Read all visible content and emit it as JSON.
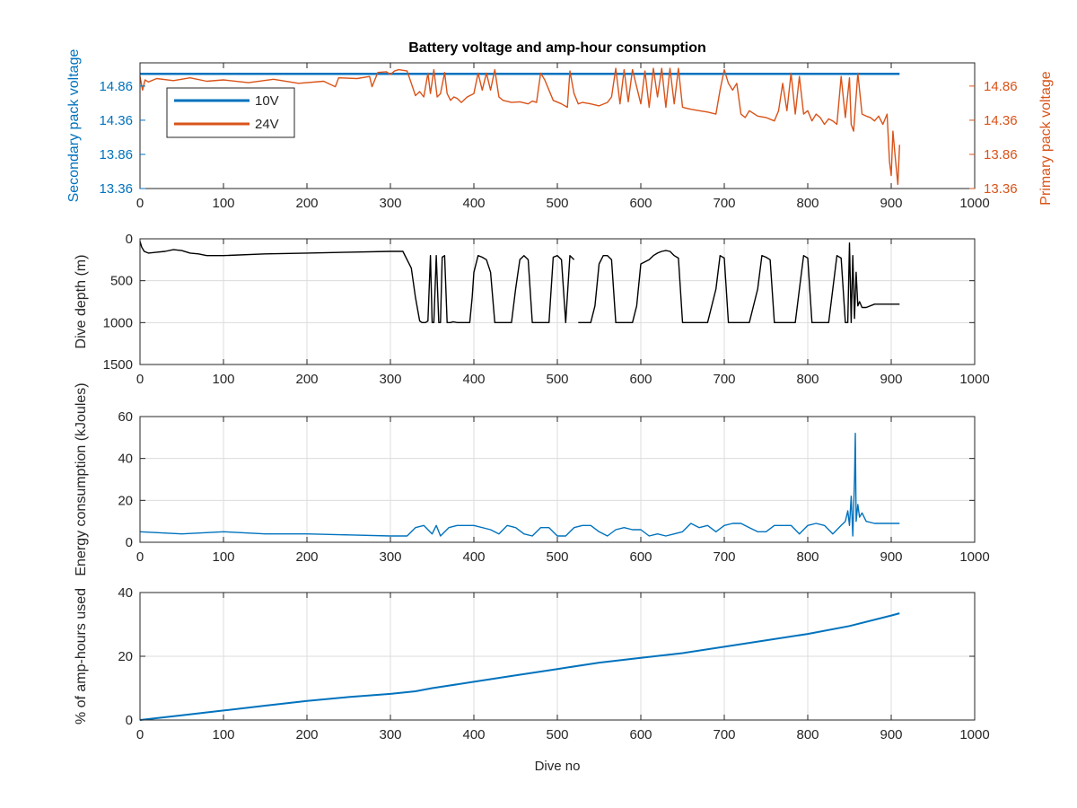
{
  "figure_title": "Battery voltage and amp-hour consumption",
  "colors": {
    "blue": "#0072BD",
    "orange": "#D95319",
    "black": "#000000",
    "grid": "#dcdcdc",
    "axis": "#262626"
  },
  "chart_data": [
    {
      "id": "voltage",
      "type": "line",
      "title": "Battery voltage and amp-hour consumption",
      "xlabel": "",
      "ylabel": "Secondary pack voltage",
      "ylabel_right": "Primary pack voltage",
      "xlim": [
        0,
        1000
      ],
      "ylim": [
        13.36,
        15.2
      ],
      "xticks": [
        0,
        100,
        200,
        300,
        400,
        500,
        600,
        700,
        800,
        900,
        1000
      ],
      "yticks": [
        13.36,
        13.86,
        14.36,
        14.86
      ],
      "ytick_labels": [
        "13.36",
        "13.86",
        "14.36",
        "14.86"
      ],
      "grid": false,
      "legend_position": "top-left",
      "series": [
        {
          "name": "10V",
          "color": "#0072BD",
          "axis": "left",
          "x": [
            0,
            910
          ],
          "y": [
            15.04,
            15.04
          ]
        },
        {
          "name": "24V",
          "color": "#D95319",
          "axis": "right",
          "x": [
            0,
            3,
            6,
            10,
            20,
            40,
            60,
            80,
            100,
            130,
            160,
            190,
            220,
            234,
            238,
            260,
            275,
            278,
            285,
            295,
            300,
            305,
            310,
            320,
            325,
            330,
            335,
            340,
            345,
            348,
            352,
            356,
            360,
            365,
            368,
            372,
            376,
            380,
            385,
            392,
            400,
            405,
            410,
            415,
            420,
            425,
            430,
            435,
            445,
            455,
            465,
            470,
            475,
            480,
            485,
            495,
            505,
            512,
            515,
            520,
            525,
            530,
            540,
            550,
            560,
            565,
            570,
            575,
            580,
            585,
            590,
            600,
            605,
            610,
            615,
            620,
            625,
            630,
            635,
            640,
            645,
            650,
            660,
            670,
            680,
            690,
            695,
            700,
            705,
            710,
            715,
            720,
            725,
            730,
            740,
            750,
            760,
            765,
            770,
            775,
            780,
            785,
            790,
            795,
            800,
            805,
            810,
            815,
            820,
            825,
            830,
            835,
            840,
            845,
            850,
            852,
            855,
            860,
            865,
            870,
            875,
            880,
            885,
            890,
            895,
            898,
            900,
            902,
            905,
            908,
            910
          ],
          "y": [
            15.0,
            14.8,
            14.95,
            14.92,
            14.97,
            14.94,
            14.98,
            14.93,
            14.95,
            14.91,
            14.96,
            14.9,
            14.93,
            14.85,
            14.98,
            14.97,
            15.0,
            14.85,
            15.06,
            15.07,
            15.03,
            15.08,
            15.1,
            15.08,
            14.9,
            14.72,
            14.78,
            14.7,
            15.05,
            14.75,
            15.1,
            14.7,
            14.75,
            15.06,
            14.75,
            14.65,
            14.7,
            14.68,
            14.62,
            14.7,
            14.75,
            15.05,
            14.8,
            15.05,
            14.8,
            15.1,
            14.7,
            14.65,
            14.62,
            14.63,
            14.6,
            14.64,
            14.62,
            15.05,
            14.95,
            14.65,
            14.6,
            14.55,
            15.08,
            14.75,
            14.6,
            14.62,
            14.6,
            14.57,
            14.62,
            14.7,
            15.12,
            14.6,
            15.1,
            14.63,
            15.1,
            14.6,
            15.08,
            14.55,
            15.12,
            14.7,
            15.12,
            14.55,
            15.12,
            14.6,
            15.12,
            14.55,
            14.52,
            14.5,
            14.48,
            14.45,
            14.8,
            15.1,
            14.9,
            14.8,
            14.9,
            14.45,
            14.4,
            14.5,
            14.42,
            14.4,
            14.35,
            14.5,
            14.9,
            14.5,
            15.05,
            14.45,
            15.0,
            14.45,
            14.5,
            14.35,
            14.45,
            14.4,
            14.3,
            14.38,
            14.35,
            14.3,
            15.0,
            14.4,
            14.98,
            14.3,
            14.2,
            15.05,
            14.45,
            14.42,
            14.4,
            14.35,
            14.42,
            14.3,
            14.45,
            13.75,
            13.55,
            14.2,
            13.8,
            13.42,
            14.0
          ]
        }
      ]
    },
    {
      "id": "depth",
      "type": "line",
      "xlabel": "",
      "ylabel": "Dive depth (m)",
      "xlim": [
        0,
        1000
      ],
      "ylim": [
        1500,
        0
      ],
      "reversed": true,
      "xticks": [
        0,
        100,
        200,
        300,
        400,
        500,
        600,
        700,
        800,
        900,
        1000
      ],
      "yticks": [
        0,
        500,
        1000,
        1500
      ],
      "ytick_labels": [
        "0",
        "500",
        "1000",
        "1500"
      ],
      "grid": true,
      "series": [
        {
          "color": "#000000",
          "x": [
            0,
            2,
            5,
            10,
            20,
            30,
            40,
            50,
            60,
            70,
            80,
            100,
            150,
            200,
            250,
            300,
            315,
            325,
            330,
            335,
            338,
            342,
            345,
            348,
            350,
            352,
            355,
            358,
            360,
            362,
            365,
            368,
            370,
            372,
            375,
            380,
            390,
            395,
            398,
            400,
            405,
            410,
            415,
            420,
            425,
            430,
            435,
            440,
            445,
            450,
            455,
            460,
            465,
            470,
            475,
            480,
            485,
            490,
            495,
            500,
            505,
            510,
            515,
            520,
            null,
            520,
            525,
            530,
            535,
            540,
            545,
            550,
            555,
            560,
            565,
            570,
            575,
            580,
            585,
            590,
            595,
            600,
            610,
            615,
            620,
            625,
            630,
            635,
            640,
            645,
            650,
            655,
            660,
            665,
            670,
            680,
            690,
            695,
            700,
            705,
            710,
            720,
            730,
            740,
            745,
            750,
            755,
            760,
            765,
            770,
            780,
            785,
            790,
            795,
            800,
            805,
            810,
            815,
            820,
            825,
            830,
            835,
            840,
            845,
            848,
            850,
            852,
            854,
            856,
            858,
            860,
            862,
            865,
            870,
            880,
            890,
            900,
            910
          ],
          "y": [
            30,
            100,
            150,
            170,
            160,
            150,
            130,
            140,
            170,
            180,
            200,
            200,
            180,
            170,
            160,
            150,
            150,
            350,
            700,
            980,
            1000,
            1000,
            980,
            200,
            1000,
            1000,
            200,
            1000,
            1000,
            220,
            200,
            1000,
            1000,
            1000,
            990,
            1000,
            1000,
            1000,
            700,
            400,
            200,
            220,
            250,
            400,
            1000,
            1000,
            1000,
            1000,
            1000,
            600,
            250,
            200,
            250,
            1000,
            1000,
            1000,
            1000,
            1000,
            220,
            200,
            250,
            1000,
            200,
            250,
            480,
            null,
            1000,
            1000,
            1000,
            1000,
            800,
            300,
            200,
            200,
            250,
            1000,
            1000,
            1000,
            1000,
            1000,
            800,
            300,
            250,
            200,
            170,
            150,
            140,
            150,
            200,
            230,
            1000,
            1000,
            1000,
            1000,
            1000,
            1000,
            600,
            200,
            230,
            1000,
            1000,
            1000,
            1000,
            600,
            200,
            220,
            250,
            1000,
            1000,
            1000,
            1000,
            1000,
            600,
            200,
            230,
            1000,
            1000,
            1000,
            1000,
            1000,
            600,
            200,
            230,
            1000,
            1000,
            50,
            1000,
            200,
            950,
            400,
            800,
            750,
            820,
            820,
            780,
            780,
            780,
            780
          ]
        }
      ]
    },
    {
      "id": "energy",
      "type": "line",
      "xlabel": "",
      "ylabel": "Energy consumption (kJoules)",
      "xlim": [
        0,
        1000
      ],
      "ylim": [
        0,
        60
      ],
      "xticks": [
        0,
        100,
        200,
        300,
        400,
        500,
        600,
        700,
        800,
        900,
        1000
      ],
      "yticks": [
        0,
        20,
        40,
        60
      ],
      "ytick_labels": [
        "0",
        "20",
        "40",
        "60"
      ],
      "grid": true,
      "series": [
        {
          "color": "#0072BD",
          "x": [
            0,
            50,
            100,
            150,
            200,
            250,
            300,
            320,
            330,
            340,
            350,
            355,
            360,
            370,
            380,
            400,
            420,
            430,
            440,
            450,
            460,
            470,
            480,
            490,
            500,
            510,
            520,
            530,
            540,
            550,
            560,
            570,
            580,
            590,
            600,
            610,
            620,
            630,
            640,
            650,
            660,
            670,
            680,
            690,
            700,
            710,
            720,
            730,
            740,
            750,
            760,
            770,
            780,
            790,
            800,
            810,
            820,
            830,
            840,
            845,
            848,
            850,
            852,
            854,
            856,
            857,
            858,
            860,
            862,
            865,
            870,
            880,
            890,
            900,
            910
          ],
          "y": [
            5,
            4,
            5,
            4,
            4,
            3.5,
            3,
            3,
            7,
            8,
            4,
            8,
            3,
            7,
            8,
            8,
            6,
            4,
            8,
            7,
            4,
            3,
            7,
            7,
            3,
            3,
            7,
            8,
            8,
            5,
            3,
            6,
            7,
            6,
            6,
            3,
            4,
            3,
            4,
            5,
            9,
            7,
            8,
            5,
            8,
            9,
            9,
            7,
            5,
            5,
            8,
            8,
            8,
            4,
            8,
            9,
            8,
            4,
            8,
            10,
            15,
            8,
            22,
            3,
            30,
            52,
            10,
            18,
            12,
            14,
            10,
            9,
            9,
            9,
            9
          ]
        }
      ]
    },
    {
      "id": "amphours",
      "type": "line",
      "xlabel": "Dive no",
      "ylabel": "% of amp-hours used",
      "xlim": [
        0,
        1000
      ],
      "ylim": [
        0,
        40
      ],
      "xticks": [
        0,
        100,
        200,
        300,
        400,
        500,
        600,
        700,
        800,
        900,
        1000
      ],
      "yticks": [
        0,
        20,
        40
      ],
      "ytick_labels": [
        "0",
        "20",
        "40"
      ],
      "grid": true,
      "series": [
        {
          "color": "#0072BD",
          "x": [
            0,
            50,
            100,
            150,
            200,
            250,
            300,
            330,
            350,
            400,
            450,
            500,
            550,
            600,
            650,
            700,
            750,
            800,
            850,
            900,
            910
          ],
          "y": [
            0,
            1.5,
            3,
            4.5,
            6,
            7.2,
            8.2,
            9,
            10,
            12,
            14,
            16,
            18,
            19.5,
            21,
            23,
            25,
            27,
            29.5,
            32.8,
            33.5
          ]
        }
      ]
    }
  ]
}
